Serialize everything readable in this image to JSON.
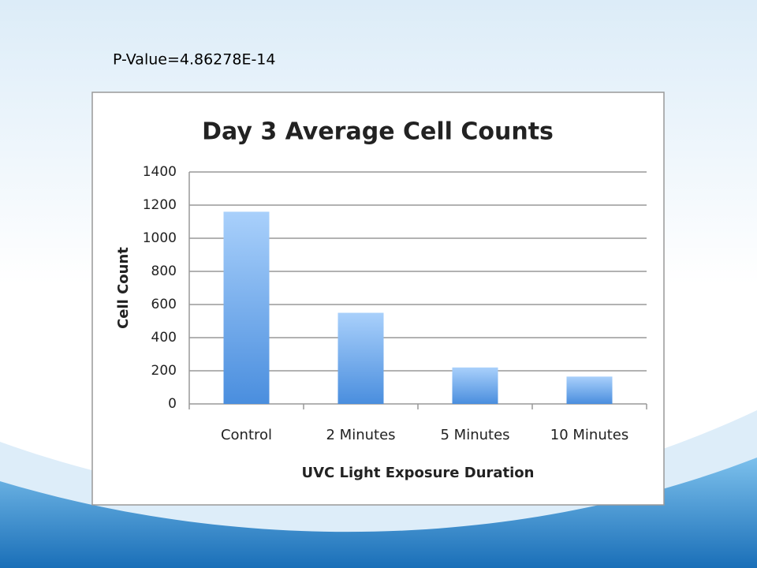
{
  "slide_text": "P-Value=4.86278E-14",
  "chart_data": {
    "type": "bar",
    "title": "Day 3 Average Cell Counts",
    "x_label": "UVC Light Exposure Duration",
    "y_label": "Cell Count",
    "categories": [
      "Control",
      "2 Minutes",
      "5 Minutes",
      "10 Minutes"
    ],
    "values": [
      1160,
      550,
      220,
      165
    ],
    "color": "#4a8ede",
    "ylim": [
      0,
      1400
    ],
    "yticks": [
      0,
      200,
      400,
      600,
      800,
      1000,
      1200,
      1400
    ],
    "grid": true
  }
}
